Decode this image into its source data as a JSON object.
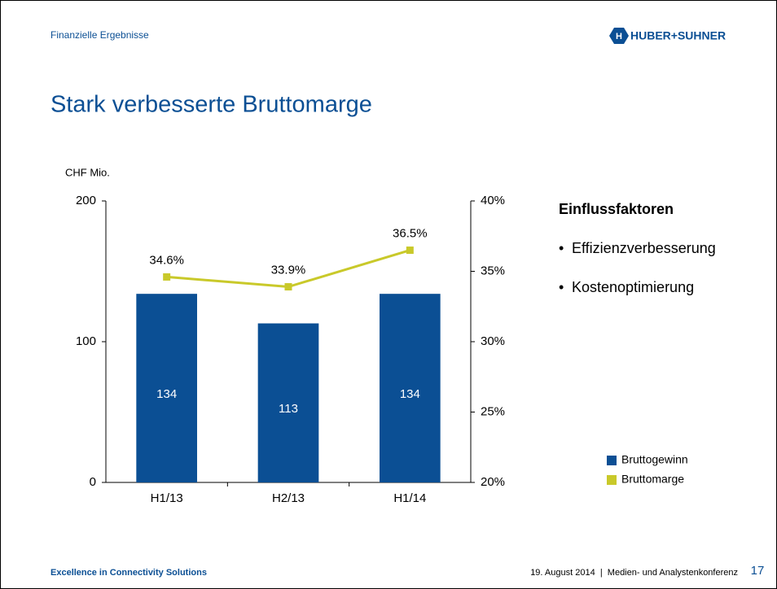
{
  "header": {
    "section": "Finanzielle Ergebnisse",
    "logo": "HUBER+SUHNER"
  },
  "title": "Stark verbesserte Bruttomarge",
  "chart_data": {
    "type": "bar",
    "y_label": "CHF Mio.",
    "categories": [
      "H1/13",
      "H2/13",
      "H1/14"
    ],
    "series": [
      {
        "name": "Bruttogewinn",
        "color": "#0b4f94",
        "values": [
          134,
          113,
          134
        ]
      },
      {
        "name": "Bruttomarge",
        "color": "#c9c92a",
        "type": "line",
        "axis": "y2",
        "values": [
          34.6,
          33.9,
          36.5
        ],
        "value_labels": [
          "34.6%",
          "33.9%",
          "36.5%"
        ]
      }
    ],
    "ylim": [
      0,
      200
    ],
    "yticks": [
      0,
      100,
      200
    ],
    "y2lim": [
      20,
      40
    ],
    "y2ticks": [
      {
        "value": 20,
        "label": "20%"
      },
      {
        "value": 25,
        "label": "25%"
      },
      {
        "value": 30,
        "label": "30%"
      },
      {
        "value": 35,
        "label": "35%"
      },
      {
        "value": 40,
        "label": "40%"
      }
    ],
    "legend": "lower right"
  },
  "sidebar": {
    "heading": "Einflussfaktoren",
    "bullets": [
      "Effizienzverbesserung",
      "Kostenoptimierung"
    ]
  },
  "footer": {
    "left": "Excellence in Connectivity Solutions",
    "right": "19. August 2014  |  Medien- und Analystenkonferenz",
    "page": "17"
  }
}
